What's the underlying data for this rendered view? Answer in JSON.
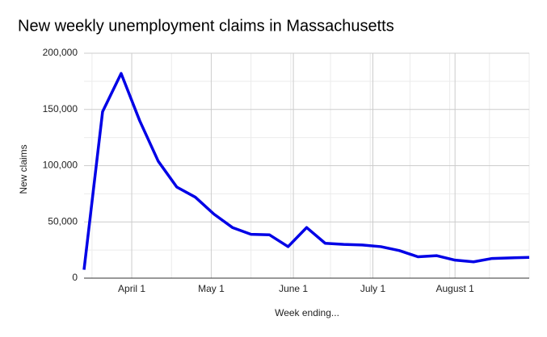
{
  "chart_data": {
    "type": "line",
    "title": "New weekly unemployment claims in Massachusetts",
    "x_label": "Week ending...",
    "y_label": "New claims",
    "x": [
      "March 14",
      "March 21",
      "March 28",
      "April 4",
      "April 11",
      "April 18",
      "April 25",
      "May 2",
      "May 9",
      "May 16",
      "May 23",
      "May 30",
      "June 6",
      "June 13",
      "June 20",
      "June 27",
      "July 4",
      "July 11",
      "July 18",
      "July 25",
      "August 1",
      "August 8",
      "August 15",
      "August 22",
      "August 29"
    ],
    "series": [
      {
        "name": "New claims",
        "color": "#0000e6",
        "values": [
          7500,
          148000,
          182000,
          140000,
          104000,
          81000,
          72000,
          57000,
          45000,
          39000,
          38500,
          28000,
          45000,
          31000,
          30000,
          29500,
          28000,
          24500,
          19000,
          20000,
          16000,
          14500,
          17500,
          18000,
          18500
        ]
      }
    ],
    "xlim": [
      "March 14",
      "August 29"
    ],
    "xticks": [
      "April 1",
      "May 1",
      "June 1",
      "July 1",
      "August 1"
    ],
    "ylim": [
      0,
      200000
    ],
    "yticks": [
      0,
      {
        "value": 50000,
        "label": "50,000"
      },
      {
        "value": 100000,
        "label": "100,000"
      },
      {
        "value": 150000,
        "label": "150,000"
      },
      {
        "value": 200000,
        "label": "200,000"
      }
    ],
    "grid": true
  }
}
